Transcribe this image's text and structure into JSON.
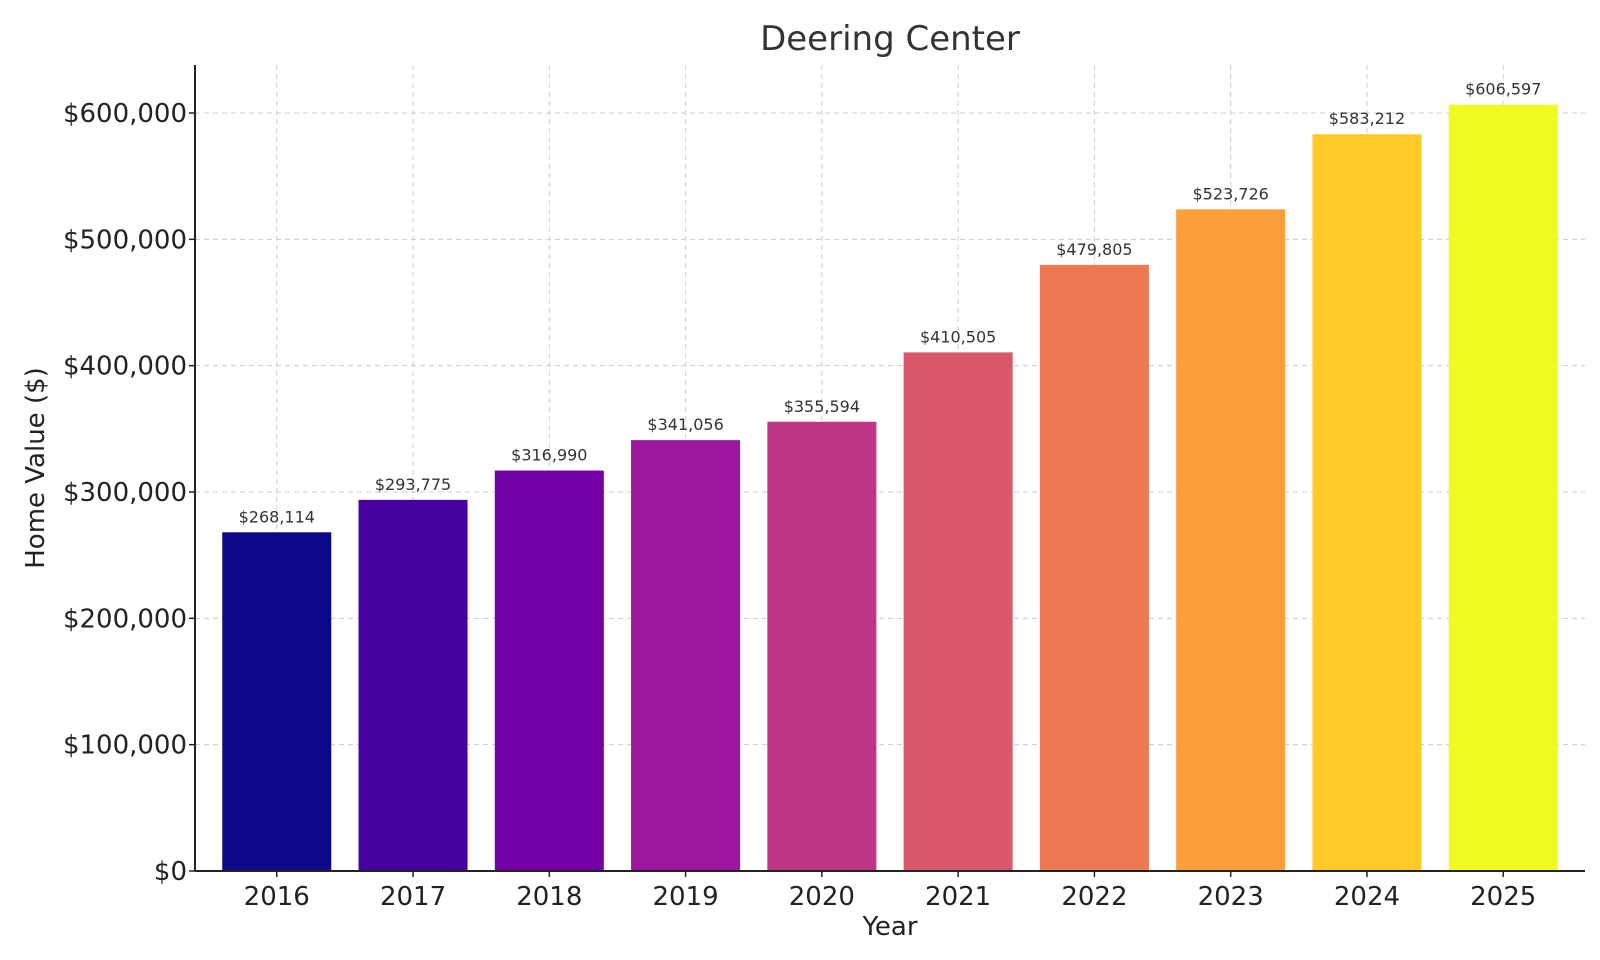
{
  "chart_data": {
    "type": "bar",
    "title": "Deering Center",
    "xlabel": "Year",
    "ylabel": "Home Value ($)",
    "categories": [
      "2016",
      "2017",
      "2018",
      "2019",
      "2020",
      "2021",
      "2022",
      "2023",
      "2024",
      "2025"
    ],
    "values": [
      268114,
      293775,
      316990,
      341056,
      355594,
      410505,
      479805,
      523726,
      583212,
      606597
    ],
    "value_labels": [
      "$268,114",
      "$293,775",
      "$316,990",
      "$341,056",
      "$355,594",
      "$410,505",
      "$479,805",
      "$523,726",
      "$583,212",
      "$606,597"
    ],
    "colors": [
      "#0d0887",
      "#46039f",
      "#7201a8",
      "#9c179e",
      "#bd3786",
      "#d8576b",
      "#ed7953",
      "#fb9f3a",
      "#fdca26",
      "#f0f921"
    ],
    "ylim": [
      0,
      638000
    ],
    "yticks": [
      0,
      100000,
      200000,
      300000,
      400000,
      500000,
      600000
    ],
    "ytick_labels": [
      "$0",
      "$100,000",
      "$200,000",
      "$300,000",
      "$400,000",
      "$500,000",
      "$600,000"
    ],
    "grid": true,
    "legend": "none"
  }
}
